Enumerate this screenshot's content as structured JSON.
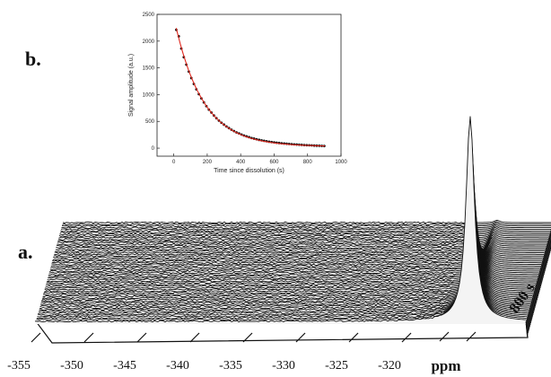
{
  "figure": {
    "panel_a_label": "a.",
    "panel_b_label": "b."
  },
  "chart_data": [
    {
      "id": "a",
      "type": "waterfall",
      "x_axis": {
        "label": "ppm",
        "ticks": [
          -355,
          -350,
          -345,
          -340,
          -335,
          -330,
          -325,
          -320
        ],
        "range": [
          -356,
          -312
        ]
      },
      "depth_axis": {
        "label": "800 s"
      },
      "peak_position_ppm": -317,
      "n_traces": 60,
      "peak_amplitude_decay": "exponential, as in panel b"
    },
    {
      "id": "b",
      "type": "scatter",
      "xlabel": "Time since dissolution (s)",
      "ylabel": "Signal amplitude (a.u.)",
      "xlim": [
        -100,
        1000
      ],
      "ylim": [
        -150,
        2500
      ],
      "xticks": [
        0,
        200,
        400,
        600,
        800,
        1000
      ],
      "yticks": [
        0,
        500,
        1000,
        1500,
        2000,
        2500
      ],
      "series": [
        {
          "kind": "points",
          "color": "#111111",
          "x": [
            15,
            30,
            45,
            60,
            75,
            90,
            105,
            120,
            135,
            150,
            165,
            180,
            195,
            210,
            225,
            240,
            255,
            270,
            285,
            300,
            315,
            330,
            345,
            360,
            375,
            390,
            405,
            420,
            435,
            450,
            465,
            480,
            495,
            510,
            525,
            540,
            555,
            570,
            585,
            600,
            615,
            630,
            645,
            660,
            675,
            690,
            705,
            720,
            735,
            750,
            765,
            780,
            795,
            810,
            825,
            840,
            855,
            870,
            885,
            900
          ],
          "y": [
            2210,
            2090,
            1860,
            1700,
            1560,
            1430,
            1310,
            1200,
            1100,
            1010,
            930,
            855,
            785,
            720,
            665,
            610,
            560,
            515,
            475,
            440,
            405,
            375,
            345,
            320,
            295,
            275,
            255,
            235,
            220,
            205,
            190,
            178,
            166,
            155,
            146,
            137,
            129,
            121,
            114,
            108,
            102,
            96,
            91,
            86,
            82,
            78,
            74,
            70,
            67,
            64,
            61,
            58,
            56,
            53,
            51,
            48,
            46,
            44,
            42,
            40
          ]
        },
        {
          "kind": "fit",
          "color": "#e0271e",
          "model": "exponential",
          "A": 2420,
          "tau": 168,
          "offset": 30,
          "x_range": [
            15,
            905
          ]
        }
      ]
    }
  ]
}
